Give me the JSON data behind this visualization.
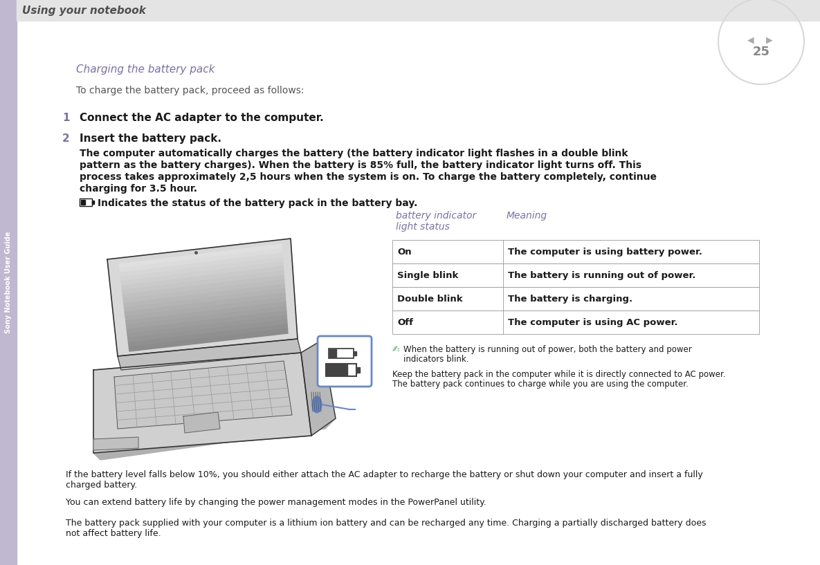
{
  "page_title": "Using your notebook",
  "sidebar_text": "Sony Notebook User Guide",
  "page_number": "25",
  "section_title": "Charging the battery pack",
  "intro_text": "To charge the battery pack, proceed as follows:",
  "step1_num": "1",
  "step1_text": "Connect the AC adapter to the computer.",
  "step2_num": "2",
  "step2_bold": "Insert the battery pack.",
  "step2_body": [
    "The computer automatically charges the battery (the battery indicator light flashes in a double blink",
    "pattern as the battery charges). When the battery is 85% full, the battery indicator light turns off. This",
    "process takes approximately 2,5 hours when the system is on. To charge the battery completely, continue",
    "charging for 3.5 hour."
  ],
  "icon_text": "Indicates the status of the battery pack in the battery bay.",
  "table_header_col1": "battery indicator",
  "table_header_col1b": "light status",
  "table_header_col2": "Meaning",
  "table_rows": [
    [
      "On",
      "The computer is using battery power."
    ],
    [
      "Single blink",
      "The battery is running out of power."
    ],
    [
      "Double blink",
      "The battery is charging."
    ],
    [
      "Off",
      "The computer is using AC power."
    ]
  ],
  "note_line1": "When the battery is running out of power, both the battery and power",
  "note_line2": "indicators blink.",
  "keep_line1": "Keep the battery pack in the computer while it is directly connected to AC power.",
  "keep_line2": "The battery pack continues to charge while you are using the computer.",
  "footer1_line1": "If the battery level falls below 10%, you should either attach the AC adapter to recharge the battery or shut down your computer and insert a fully",
  "footer1_line2": "charged battery.",
  "footer2": "You can extend battery life by changing the power management modes in the PowerPanel utility.",
  "footer3_line1": "The battery pack supplied with your computer is a lithium ion battery and can be recharged any time. Charging a partially discharged battery does",
  "footer3_line2": "not affect battery life.",
  "bg_color": "#ffffff",
  "sidebar_color": "#c0b8d0",
  "header_bar_color": "#e4e4e4",
  "purple_color": "#7b6faa",
  "table_border_color": "#999999",
  "text_color": "#1a1a1a",
  "gray_text": "#555555",
  "note_icon_color": "#44aa66"
}
